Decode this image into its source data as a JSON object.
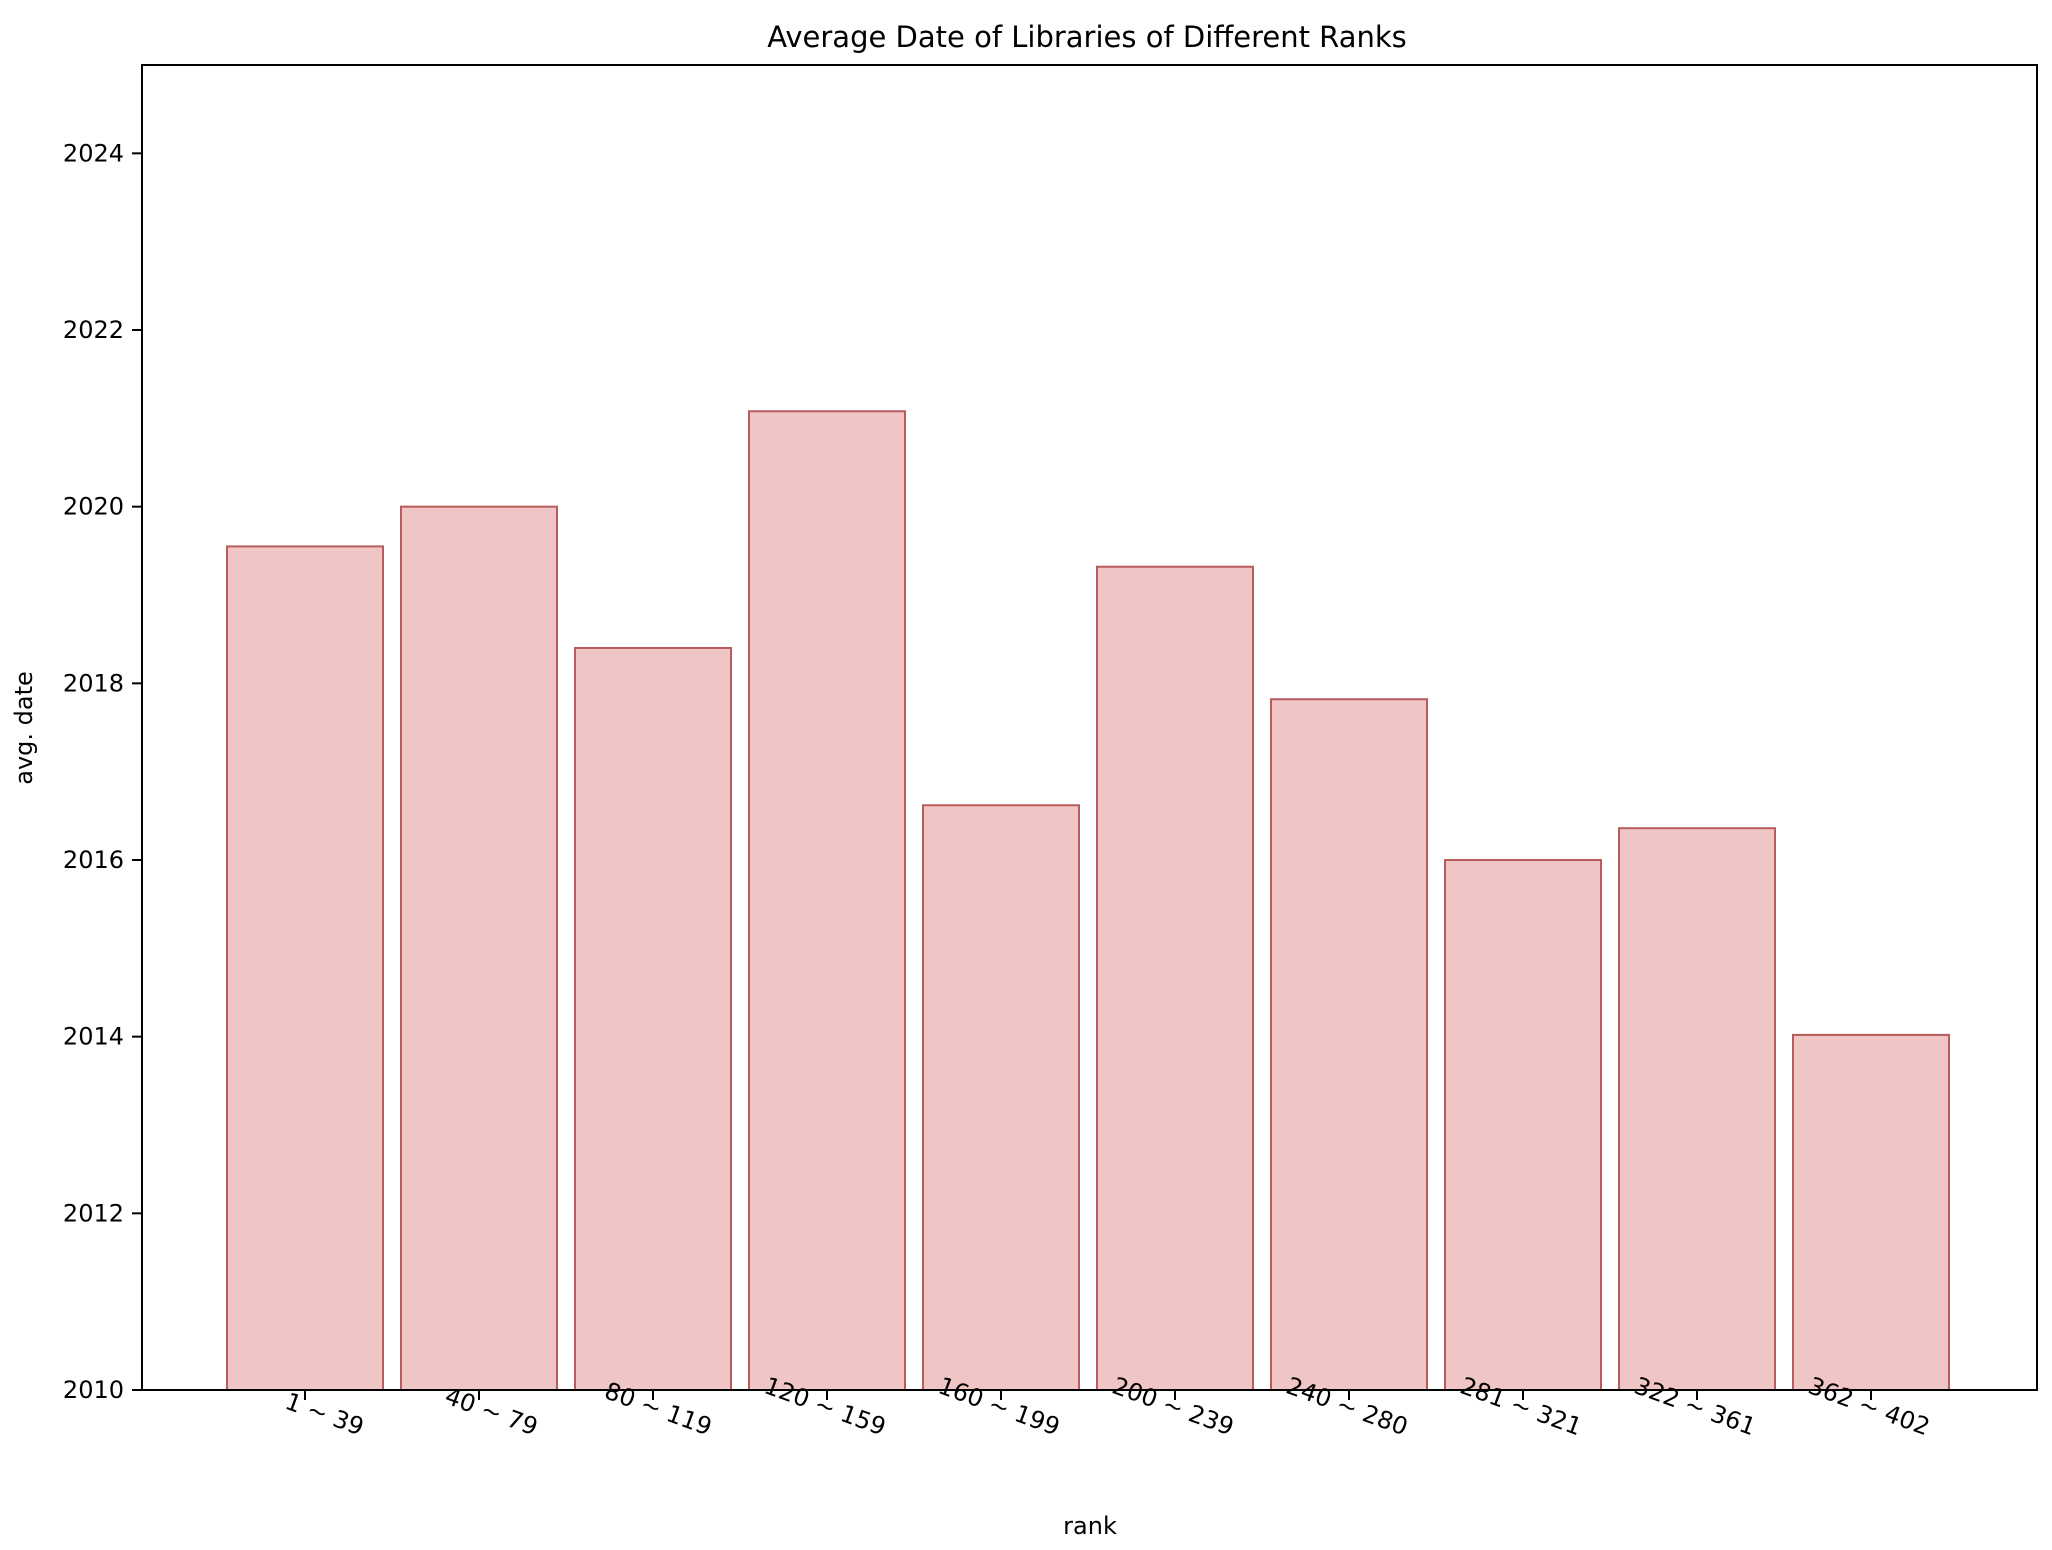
{
  "chart_data": {
    "type": "bar",
    "title": "Average Date of Libraries of Different Ranks",
    "xlabel": "rank",
    "ylabel": "avg. date",
    "categories": [
      "1 ~ 39",
      "40 ~ 79",
      "80 ~ 119",
      "120 ~ 159",
      "160 ~ 199",
      "200 ~ 239",
      "240 ~ 280",
      "281 ~ 321",
      "322 ~ 361",
      "362 ~ 402"
    ],
    "values": [
      2019.55,
      2020.0,
      2018.4,
      2021.08,
      2016.62,
      2019.32,
      2017.82,
      2016.0,
      2016.36,
      2014.02
    ],
    "ylim": [
      2010,
      2025
    ],
    "yticks": [
      2010,
      2012,
      2014,
      2016,
      2018,
      2020,
      2022,
      2024
    ],
    "grid": false,
    "colors": {
      "bar_fill": "#efc5c6",
      "bar_edge": "#b85c5c",
      "axis": "#000000"
    }
  }
}
